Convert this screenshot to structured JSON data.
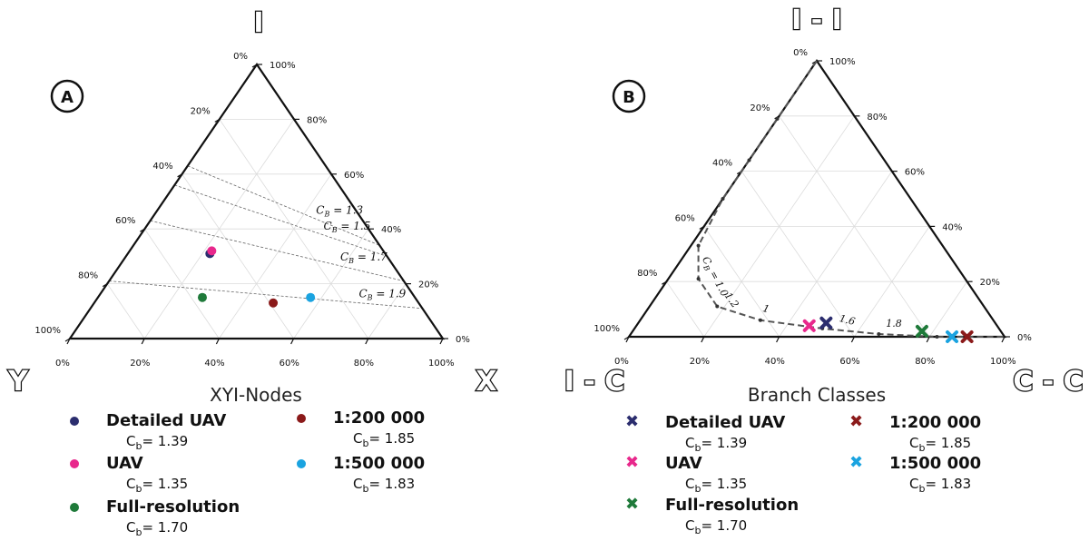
{
  "panel_a": {
    "letter": "A",
    "title": "XYI-Nodes",
    "corner_top": "I",
    "corner_left": "Y",
    "corner_right": "X",
    "ticks_left": [
      "0%",
      "20%",
      "40%",
      "60%",
      "80%",
      "100%"
    ],
    "ticks_right": [
      "100%",
      "80%",
      "60%",
      "40%",
      "20%",
      "0%"
    ],
    "ticks_bottom": [
      "0%",
      "20%",
      "40%",
      "60%",
      "80%",
      "100%"
    ],
    "cb_lines": [
      {
        "label": "1.3"
      },
      {
        "label": "1.5"
      },
      {
        "label": "1.7"
      },
      {
        "label": "1.9"
      }
    ],
    "cb_prefix": "C",
    "cb_sub": "B",
    "legend": [
      {
        "name": "Detailed UAV",
        "value": "= 1.39",
        "color": "#2b2d6e"
      },
      {
        "name": "UAV",
        "value": "= 1.35",
        "color": "#e8288c"
      },
      {
        "name": "Full-resolution",
        "value": "= 1.70",
        "color": "#1f7a3a"
      },
      {
        "name": "1:200 000",
        "value": "= 1.85",
        "color": "#8b1a1a"
      },
      {
        "name": "1:500 000",
        "value": "= 1.83",
        "color": "#1aa3e0"
      }
    ],
    "cb_legend_prefix": "C",
    "cb_legend_sub": "b"
  },
  "panel_b": {
    "letter": "B",
    "title": "Branch Classes",
    "corner_top": "I - I",
    "corner_left": "I - C",
    "corner_right": "C - C",
    "ticks_left": [
      "0%",
      "20%",
      "40%",
      "60%",
      "80%",
      "100%"
    ],
    "ticks_right": [
      "100%",
      "80%",
      "60%",
      "40%",
      "20%",
      "0%"
    ],
    "ticks_bottom": [
      "0%",
      "20%",
      "40%",
      "60%",
      "80%",
      "100%"
    ],
    "curve_labels": [
      "1.0",
      "1.2",
      "1",
      "1.6",
      "1.8"
    ],
    "curve_prefix": "C",
    "curve_sub": "B",
    "legend": [
      {
        "name": "Detailed UAV",
        "value": "= 1.39",
        "color": "#2b2d6e"
      },
      {
        "name": "UAV",
        "value": "= 1.35",
        "color": "#e8288c"
      },
      {
        "name": "Full-resolution",
        "value": "= 1.70",
        "color": "#1f7a3a"
      },
      {
        "name": "1:200 000",
        "value": "= 1.85",
        "color": "#8b1a1a"
      },
      {
        "name": "1:500 000",
        "value": "= 1.83",
        "color": "#1aa3e0"
      }
    ],
    "cb_legend_prefix": "C",
    "cb_legend_sub": "b"
  },
  "chart_data": [
    {
      "type": "scatter",
      "title": "XYI-Nodes",
      "ternary_axes": [
        "X",
        "Y",
        "I"
      ],
      "series": [
        {
          "name": "Detailed UAV",
          "X": 22,
          "Y": 47,
          "I": 31,
          "color": "#2b2d6e"
        },
        {
          "name": "UAV",
          "X": 22,
          "Y": 46,
          "I": 32,
          "color": "#e8288c"
        },
        {
          "name": "Full-resolution",
          "X": 28,
          "Y": 57,
          "I": 15,
          "color": "#1f7a3a"
        },
        {
          "name": "1:200 000",
          "X": 48,
          "Y": 39,
          "I": 13,
          "color": "#8b1a1a"
        },
        {
          "name": "1:500 000",
          "X": 57,
          "Y": 28,
          "I": 15,
          "color": "#1aa3e0"
        }
      ],
      "isolines": [
        {
          "label": "1.3",
          "y_at_left": 37,
          "y_at_right": 66
        },
        {
          "label": "1.5",
          "y_at_left": 44,
          "y_at_right": 70
        },
        {
          "label": "1.7",
          "y_at_left": 57,
          "y_at_right": 79
        },
        {
          "label": "1.9",
          "y_at_left": 79,
          "y_at_right": 89
        }
      ]
    },
    {
      "type": "scatter",
      "title": "Branch Classes",
      "ternary_axes": [
        "C - C",
        "I - C",
        "I - I"
      ],
      "series": [
        {
          "name": "Detailed UAV",
          "C - C": 50,
          "I - C": 45,
          "I - I": 5,
          "color": "#2b2d6e"
        },
        {
          "name": "UAV",
          "C - C": 46,
          "I - C": 50,
          "I - I": 4,
          "color": "#e8288c"
        },
        {
          "name": "Full-resolution",
          "C - C": 77,
          "I - C": 21,
          "I - I": 2,
          "color": "#1f7a3a"
        },
        {
          "name": "1:200 000",
          "C - C": 90,
          "I - C": 10,
          "I - I": 0,
          "color": "#8b1a1a"
        },
        {
          "name": "1:500 000",
          "C - C": 86,
          "I - C": 14,
          "I - I": 0,
          "color": "#1aa3e0"
        }
      ],
      "curve": [
        {
          "C - C": 0,
          "I - C": 0,
          "I - I": 100
        },
        {
          "C - C": 0,
          "I - C": 21,
          "I - I": 79
        },
        {
          "C - C": 0,
          "I - C": 36,
          "I - I": 64
        },
        {
          "C - C": 0,
          "I - C": 50,
          "I - I": 50
        },
        {
          "C - C": 2,
          "I - C": 65,
          "I - I": 33
        },
        {
          "C - C": 8,
          "I - C": 71,
          "I - I": 21
        },
        {
          "C - C": 18,
          "I - C": 71,
          "I - I": 11
        },
        {
          "C - C": 32,
          "I - C": 62,
          "I - I": 6
        },
        {
          "C - C": 50,
          "I - C": 47,
          "I - I": 3
        },
        {
          "C - C": 66,
          "I - C": 33,
          "I - I": 1
        },
        {
          "C - C": 82,
          "I - C": 18,
          "I - I": 0
        },
        {
          "C - C": 100,
          "I - C": 0,
          "I - I": 0
        }
      ]
    }
  ]
}
